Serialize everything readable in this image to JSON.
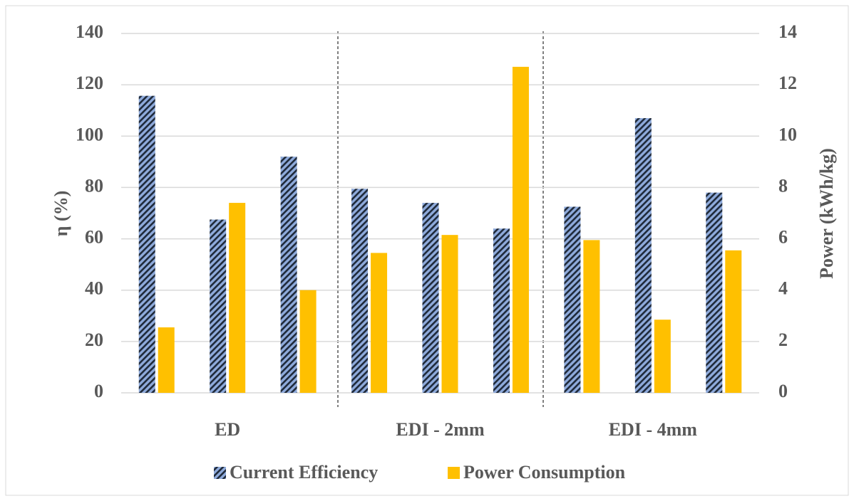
{
  "chart_data": {
    "type": "bar",
    "categories": [
      null,
      "ED",
      null,
      null,
      "EDI - 2mm",
      null,
      null,
      "EDI - 4mm",
      null
    ],
    "series": [
      {
        "name": "Current Efficiency",
        "color": "#8eaadb",
        "pattern": "diagonal-hatch",
        "values": [
          115.7,
          67.5,
          92,
          79.5,
          74,
          64,
          72.5,
          107,
          78
        ]
      },
      {
        "name": "Power Consumption",
        "color": "#ffc000",
        "axis": "y2",
        "values": [
          2.55,
          7.4,
          4.0,
          5.45,
          6.15,
          12.7,
          5.95,
          2.85,
          5.55
        ]
      }
    ],
    "y_label": "η (%)",
    "y2_label": "Power (kWh/kg)",
    "ylim": [
      0,
      140
    ],
    "yticks": [
      0,
      20,
      40,
      60,
      80,
      100,
      120,
      140
    ],
    "y2lim": [
      0,
      14
    ],
    "y2ticks": [
      0,
      2,
      4,
      6,
      8,
      10,
      12,
      14
    ],
    "grid": true,
    "legend": "bottom"
  }
}
